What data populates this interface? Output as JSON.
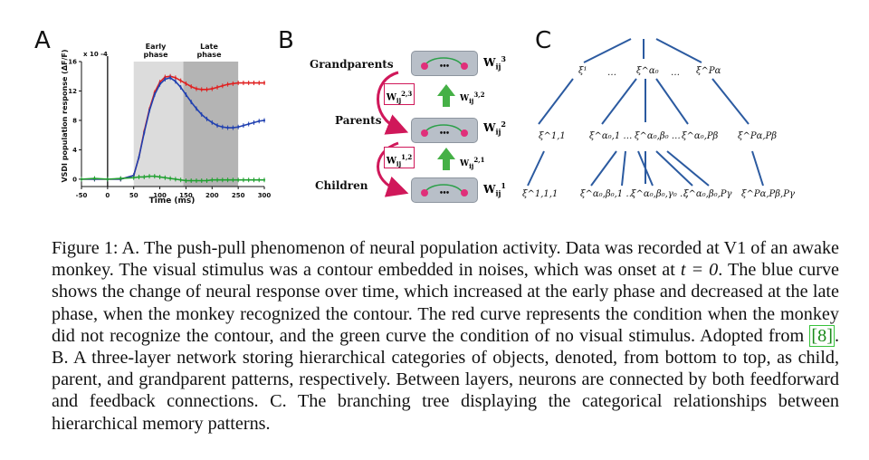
{
  "panels": {
    "a": "A",
    "b": "B",
    "c": "C"
  },
  "panel_a": {
    "y_label": "VSDI population response (ΔF/F)",
    "x_label": "Time (ms)",
    "y_scale": "x 10 -4",
    "phase_early": [
      "Early",
      "phase"
    ],
    "phase_late": [
      "Late",
      "phase"
    ]
  },
  "chart_data": {
    "type": "line",
    "title": "",
    "xlabel": "Time (ms)",
    "ylabel": "VSDI population response (ΔF/F)",
    "y_multiplier": "x 10 -4",
    "xlim": [
      -50,
      300
    ],
    "ylim": [
      -1,
      16
    ],
    "x_ticks": [
      -50,
      0,
      50,
      100,
      150,
      200,
      250,
      300
    ],
    "y_ticks": [
      0,
      4,
      8,
      12,
      16
    ],
    "grid": false,
    "shaded_regions": [
      {
        "label": "Early phase",
        "x": [
          50,
          145
        ],
        "color": "#dcdcdc"
      },
      {
        "label": "Late phase",
        "x": [
          145,
          250
        ],
        "color": "#b4b4b4"
      }
    ],
    "x": [
      -50,
      -25,
      0,
      25,
      50,
      60,
      70,
      80,
      90,
      100,
      110,
      120,
      130,
      140,
      150,
      160,
      170,
      180,
      190,
      200,
      210,
      220,
      230,
      240,
      250,
      260,
      270,
      280,
      290,
      300
    ],
    "series": [
      {
        "color": "#e02020",
        "values": [
          0,
          0,
          0,
          0,
          0.5,
          3,
          6.5,
          9.5,
          11.8,
          13.2,
          13.9,
          14.0,
          13.8,
          13.4,
          13.0,
          12.6,
          12.3,
          12.2,
          12.2,
          12.3,
          12.5,
          12.7,
          12.9,
          13.0,
          13.1,
          13.1,
          13.1,
          13.1,
          13.1,
          13.1
        ]
      },
      {
        "color": "#2040b0",
        "values": [
          0,
          0,
          0,
          0,
          0.5,
          3,
          6.3,
          9.3,
          11.5,
          12.9,
          13.6,
          13.8,
          13.3,
          12.5,
          11.5,
          10.5,
          9.6,
          8.8,
          8.2,
          7.7,
          7.3,
          7.1,
          7.0,
          7.0,
          7.1,
          7.3,
          7.5,
          7.7,
          7.9,
          8.0
        ]
      },
      {
        "color": "#20a030",
        "values": [
          0,
          0.1,
          0,
          0.1,
          0.2,
          0.3,
          0.3,
          0.4,
          0.4,
          0.3,
          0.2,
          0.1,
          0,
          -0.1,
          -0.2,
          -0.2,
          -0.2,
          -0.2,
          -0.2,
          -0.1,
          -0.1,
          -0.1,
          -0.1,
          -0.1,
          -0.1,
          -0.1,
          -0.1,
          -0.1,
          -0.1,
          -0.1
        ]
      }
    ]
  },
  "panel_b": {
    "layers": [
      "Grandparents",
      "Parents",
      "Children"
    ],
    "box_dots": "•••",
    "w_top": {
      "base": "W",
      "sub": "ij",
      "sup": "3"
    },
    "w_mid": {
      "base": "W",
      "sub": "ij",
      "sup": "2"
    },
    "w_bot": {
      "base": "W",
      "sub": "ij",
      "sup": "1"
    },
    "feedback_upper": {
      "base": "W",
      "sub": "ij",
      "sup": "2,3"
    },
    "feedback_lower": {
      "base": "W",
      "sub": "ij",
      "sup": "1,2"
    },
    "feed_upper": {
      "base": "W",
      "sub": "ij",
      "sup": "3,2"
    },
    "feed_lower": {
      "base": "W",
      "sub": "ij",
      "sup": "2,1"
    }
  },
  "panel_c": {
    "row1": [
      "ξ¹",
      "…",
      "ξ^α₀",
      "…",
      "ξ^Pα"
    ],
    "row2": [
      "ξ^1,1",
      "ξ^α₀,1 …",
      "ξ^α₀,β₀ …",
      "ξ^α₀,Pβ",
      "ξ^Pα,Pβ"
    ],
    "row3": [
      "ξ^1,1,1",
      "ξ^α₀,β₀,1 …",
      "ξ^α₀,β₀,γ₀ …",
      "ξ^α₀,β₀,Pγ",
      "ξ^Pα,Pβ,Pγ"
    ]
  },
  "caption": {
    "part1": "Figure 1: A. The push-pull phenomenon of neural population activity. Data was recorded at V1 of an awake monkey. The visual stimulus was a contour embedded in noises, which was onset at ",
    "t_expr": "t = 0",
    "part2": ". The blue curve shows the change of neural response over time, which increased at the early phase and decreased at the late phase, when the monkey recognized the contour. The red curve represents the condition when the monkey did not recognize the contour, and the green curve the condition of no visual stimulus. Adopted from ",
    "cite": "[8]",
    "part3": ". B. A three-layer network storing hierarchical categories of objects, denoted, from bottom to top, as child, parent, and grandparent patterns, respectively. Between layers, neurons are connected by both feedforward and feedback connections. C. The branching tree displaying the categorical relationships between hierarchical memory patterns."
  }
}
